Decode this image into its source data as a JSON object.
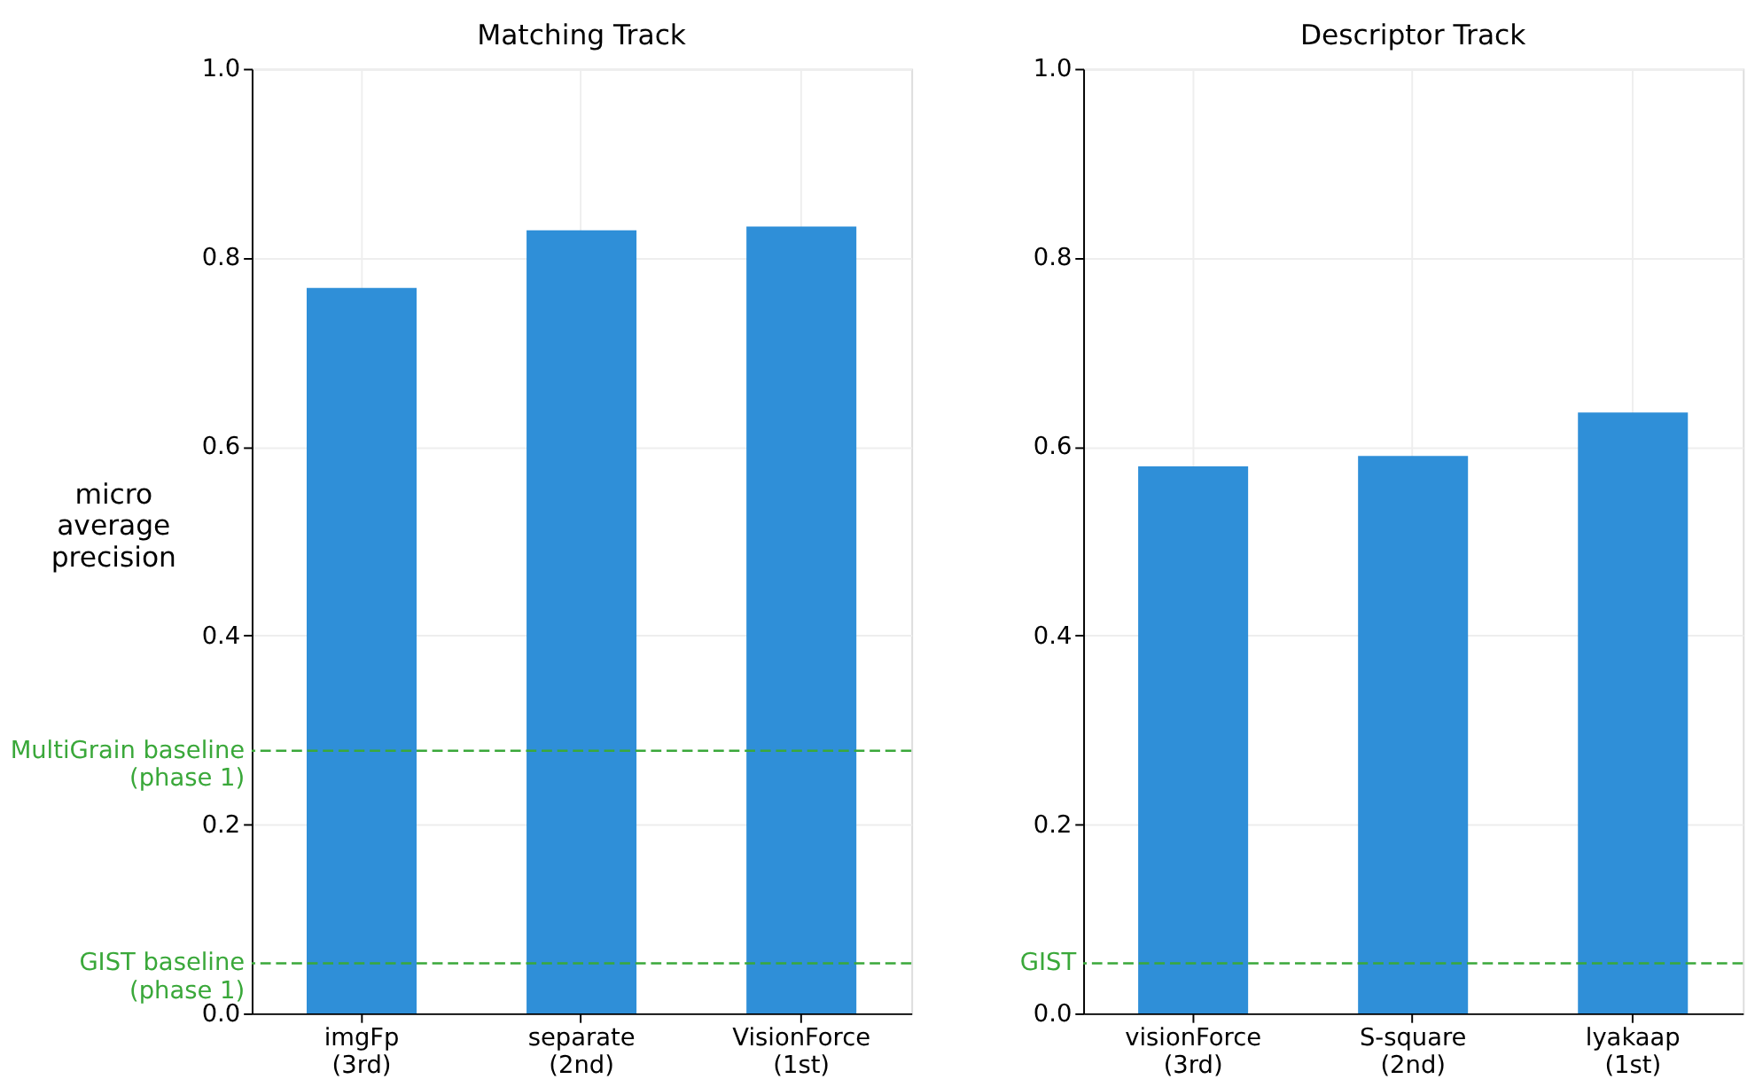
{
  "chart_data": [
    {
      "type": "bar",
      "title": "Matching Track",
      "ylabel": "micro\naverage\nprecision",
      "categories": [
        "imgFp\n(3rd)",
        "separate\n(2nd)",
        "VisionForce\n(1st)"
      ],
      "values": [
        0.768,
        0.829,
        0.833
      ],
      "color": "#2f8fd8",
      "ylim": [
        0,
        1
      ],
      "yticks": [
        {
          "value": 0,
          "label": "0.0"
        },
        {
          "value": 0.2,
          "label": "0.2"
        },
        {
          "value": 0.4,
          "label": "0.4"
        },
        {
          "value": 0.6,
          "label": "0.6"
        },
        {
          "value": 0.8,
          "label": "0.8"
        },
        {
          "value": 1,
          "label": "1.0"
        }
      ],
      "grid": true,
      "ref_lines": [
        {
          "axis": "y",
          "value": 0.278,
          "label": "MultiGrain baseline\n(phase 1)",
          "color": "#3aa83a",
          "line_style": "dashed"
        },
        {
          "axis": "y",
          "value": 0.053,
          "label": "GIST baseline\n(phase 1)",
          "color": "#3aa83a",
          "line_style": "dashed"
        }
      ]
    },
    {
      "type": "bar",
      "title": "Descriptor Track",
      "categories": [
        "visionForce\n(3rd)",
        "S-square\n(2nd)",
        "lyakaap\n(1st)"
      ],
      "values": [
        0.579,
        0.59,
        0.636
      ],
      "color": "#2f8fd8",
      "ylim": [
        0,
        1
      ],
      "yticks": [
        {
          "value": 0,
          "label": "0.0"
        },
        {
          "value": 0.2,
          "label": "0.2"
        },
        {
          "value": 0.4,
          "label": "0.4"
        },
        {
          "value": 0.6,
          "label": "0.6"
        },
        {
          "value": 0.8,
          "label": "0.8"
        },
        {
          "value": 1,
          "label": "1.0"
        }
      ],
      "grid": true,
      "ref_lines": [
        {
          "axis": "y",
          "value": 0.053,
          "label": "GIST",
          "color": "#3aa83a",
          "line_style": "dashed"
        }
      ]
    }
  ]
}
